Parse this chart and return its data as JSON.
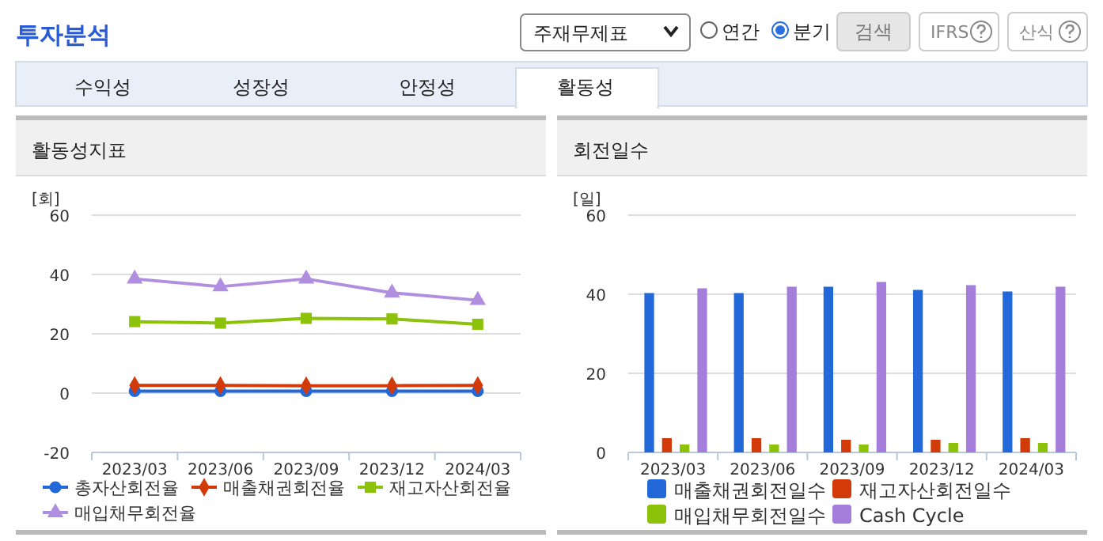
{
  "chart_data": [
    {
      "type": "other",
      "title": "투자분석",
      "annotations": [
        "주재무제표",
        "연간",
        "분기",
        "검색",
        "IFRS",
        "산식",
        "수익성",
        "성장성",
        "안정성",
        "활동성"
      ]
    },
    {
      "type": "line",
      "title": "활동성지표",
      "ylabel": "[회]",
      "categories": [
        "2023/03",
        "2023/06",
        "2023/09",
        "2023/12",
        "2024/03"
      ],
      "ylim": [
        -20,
        60
      ],
      "yticks": [
        -20,
        0,
        20,
        40,
        60
      ],
      "grid": "y",
      "legend": "bottom",
      "series": [
        {
          "name": "총자산회전율",
          "color": "#2268d9",
          "marker": "circle",
          "values": [
            0.7,
            0.7,
            0.7,
            0.7,
            0.7
          ]
        },
        {
          "name": "매출채권회전율",
          "color": "#d33a0a",
          "marker": "diamond",
          "values": [
            2.6,
            2.6,
            2.5,
            2.5,
            2.6
          ]
        },
        {
          "name": "재고자산회전율",
          "color": "#8cc20a",
          "marker": "square",
          "values": [
            24.1,
            23.6,
            25.2,
            25.0,
            23.2
          ]
        },
        {
          "name": "매입채무회전율",
          "color": "#b08ee0",
          "marker": "triangle",
          "values": [
            38.5,
            35.9,
            38.5,
            33.8,
            31.3
          ]
        }
      ]
    },
    {
      "type": "bar",
      "title": "회전일수",
      "ylabel": "[일]",
      "categories": [
        "2023/03",
        "2023/06",
        "2023/09",
        "2023/12",
        "2024/03"
      ],
      "ylim": [
        0,
        60
      ],
      "yticks": [
        0,
        20,
        40,
        60
      ],
      "grid": "y",
      "legend": "bottom",
      "series": [
        {
          "name": "매출채권회전일수",
          "color": "#2268d9",
          "values": [
            40.3,
            40.3,
            41.9,
            41.1,
            40.7
          ]
        },
        {
          "name": "재고자산회전일수",
          "color": "#d33a0a",
          "values": [
            3.6,
            3.6,
            3.2,
            3.2,
            3.6
          ]
        },
        {
          "name": "매입채무회전일수",
          "color": "#8cc20a",
          "values": [
            2.0,
            2.0,
            2.0,
            2.4,
            2.4
          ]
        },
        {
          "name": "Cash Cycle",
          "color": "#a57edb",
          "values": [
            41.5,
            41.9,
            43.1,
            42.3,
            41.9
          ]
        }
      ]
    }
  ]
}
